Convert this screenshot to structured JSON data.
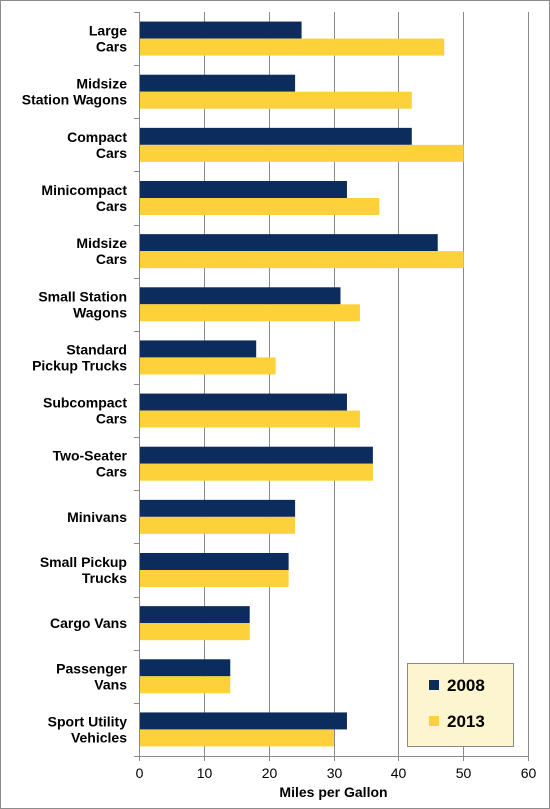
{
  "chart_data": {
    "type": "bar",
    "orientation": "horizontal",
    "categories": [
      [
        "Large",
        "Cars"
      ],
      [
        "Midsize",
        "Station Wagons"
      ],
      [
        "Compact",
        "Cars"
      ],
      [
        "Minicompact",
        "Cars"
      ],
      [
        "Midsize",
        "Cars"
      ],
      [
        "Small Station",
        "Wagons"
      ],
      [
        "Standard",
        "Pickup Trucks"
      ],
      [
        "Subcompact",
        "Cars"
      ],
      [
        "Two-Seater",
        "Cars"
      ],
      [
        "Minivans"
      ],
      [
        "Small Pickup",
        "Trucks"
      ],
      [
        "Cargo Vans"
      ],
      [
        "Passenger",
        "Vans"
      ],
      [
        "Sport Utility",
        "Vehicles"
      ]
    ],
    "series": [
      {
        "name": "2008",
        "color": "#0d2c5e",
        "values": [
          25,
          24,
          42,
          32,
          46,
          31,
          18,
          32,
          36,
          24,
          23,
          17,
          14,
          32
        ]
      },
      {
        "name": "2013",
        "color": "#fcd13a",
        "values": [
          47,
          42,
          50,
          37,
          50,
          34,
          21,
          34,
          36,
          24,
          23,
          17,
          14,
          30
        ]
      }
    ],
    "xlabel": "Miles per Gallon",
    "xlim": [
      0,
      60
    ],
    "xticks": [
      0,
      10,
      20,
      30,
      40,
      50,
      60
    ],
    "grid": "vertical",
    "legend": {
      "placement": "bottom-right",
      "background": "#fdf5d0"
    }
  }
}
